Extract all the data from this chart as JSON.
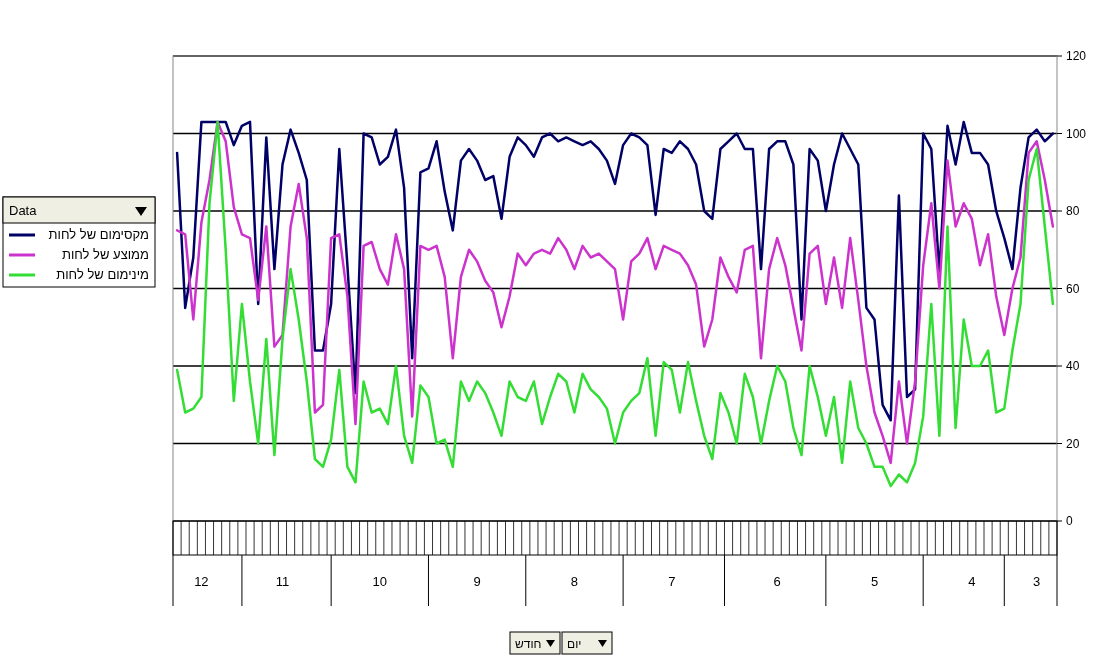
{
  "chart_data": {
    "type": "line",
    "legend_title": "Data",
    "legend": "left",
    "grid": "y",
    "marker": "none",
    "line_style": "solid",
    "ylim": [
      0,
      120
    ],
    "yticks": [
      0,
      20,
      40,
      60,
      80,
      100,
      120
    ],
    "annotations": [
      "חודש",
      "יום"
    ],
    "categories": [
      null,
      null,
      null,
      "12",
      null,
      null,
      null,
      null,
      null,
      null,
      null,
      null,
      null,
      "11",
      null,
      null,
      null,
      null,
      null,
      null,
      null,
      null,
      null,
      null,
      null,
      "10",
      null,
      null,
      null,
      null,
      null,
      null,
      null,
      null,
      null,
      null,
      null,
      "9",
      null,
      null,
      null,
      null,
      null,
      null,
      null,
      null,
      null,
      null,
      null,
      "8",
      null,
      null,
      null,
      null,
      null,
      null,
      null,
      null,
      null,
      null,
      null,
      "7",
      null,
      null,
      null,
      null,
      null,
      null,
      null,
      null,
      null,
      null,
      null,
      null,
      "6",
      null,
      null,
      null,
      null,
      null,
      null,
      null,
      null,
      null,
      null,
      null,
      "5",
      null,
      null,
      null,
      null,
      null,
      null,
      null,
      null,
      null,
      null,
      null,
      "4",
      null,
      null,
      null,
      null,
      null,
      null,
      null,
      "3",
      null,
      null
    ],
    "series": [
      {
        "name": "מקסימום של לחות",
        "color": "#000066",
        "values": [
          95,
          55,
          68,
          103,
          103,
          103,
          103,
          97,
          102,
          103,
          56,
          99,
          65,
          92,
          101,
          95,
          88,
          44,
          44,
          56,
          96,
          66,
          33,
          100,
          99,
          92,
          94,
          101,
          86,
          42,
          90,
          91,
          98,
          85,
          75,
          93,
          96,
          93,
          88,
          89,
          78,
          94,
          99,
          97,
          94,
          99,
          100,
          98,
          99,
          98,
          97,
          98,
          96,
          93,
          87,
          97,
          100,
          99,
          97,
          79,
          96,
          95,
          98,
          96,
          92,
          80,
          78,
          96,
          98,
          100,
          96,
          96,
          65,
          96,
          98,
          98,
          92,
          52,
          96,
          93,
          80,
          92,
          100,
          96,
          92,
          55,
          52,
          30,
          26,
          84,
          32,
          34,
          100,
          96,
          64,
          102,
          92,
          103,
          95,
          95,
          92,
          80,
          73,
          65,
          86,
          99,
          101,
          98,
          100
        ]
      },
      {
        "name": "ממוצע של לחות",
        "color": "#cc33cc",
        "values": [
          75,
          74,
          52,
          77,
          88,
          103,
          98,
          81,
          74,
          73,
          57,
          76,
          45,
          48,
          76,
          87,
          73,
          28,
          30,
          73,
          74,
          58,
          25,
          71,
          72,
          65,
          61,
          74,
          65,
          27,
          71,
          70,
          71,
          63,
          42,
          63,
          70,
          67,
          62,
          59,
          50,
          58,
          69,
          66,
          69,
          70,
          69,
          73,
          70,
          65,
          71,
          68,
          69,
          67,
          65,
          52,
          67,
          69,
          73,
          65,
          71,
          70,
          69,
          66,
          61,
          45,
          52,
          68,
          63,
          59,
          70,
          71,
          42,
          65,
          73,
          66,
          55,
          44,
          69,
          71,
          56,
          68,
          55,
          73,
          57,
          40,
          28,
          22,
          15,
          36,
          20,
          36,
          66,
          82,
          60,
          93,
          76,
          82,
          78,
          66,
          74,
          58,
          48,
          60,
          68,
          95,
          98,
          88,
          76
        ]
      },
      {
        "name": "מינימום של לחות",
        "color": "#33dd33",
        "values": [
          39,
          28,
          29,
          32,
          82,
          103,
          70,
          31,
          56,
          36,
          20,
          47,
          17,
          47,
          65,
          52,
          36,
          16,
          14,
          21,
          39,
          14,
          10,
          36,
          28,
          29,
          25,
          40,
          22,
          15,
          35,
          32,
          20,
          21,
          14,
          36,
          31,
          36,
          33,
          28,
          22,
          36,
          32,
          31,
          36,
          25,
          32,
          38,
          36,
          28,
          38,
          34,
          32,
          29,
          20,
          28,
          31,
          33,
          42,
          22,
          41,
          39,
          28,
          41,
          31,
          22,
          16,
          33,
          28,
          20,
          38,
          32,
          20,
          31,
          40,
          36,
          24,
          17,
          40,
          32,
          22,
          32,
          15,
          36,
          24,
          20,
          14,
          14,
          9,
          12,
          10,
          15,
          27,
          56,
          22,
          76,
          24,
          52,
          40,
          40,
          44,
          28,
          29,
          44,
          56,
          88,
          96,
          76,
          56
        ]
      }
    ]
  }
}
